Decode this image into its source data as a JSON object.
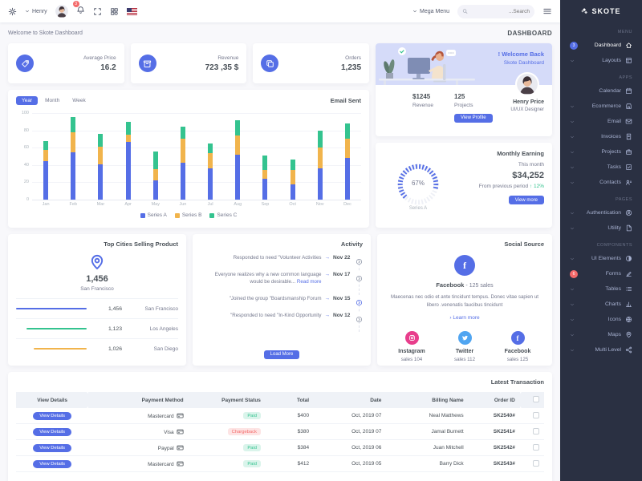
{
  "navbar": {
    "user_name": "Henry",
    "notification_count": "3",
    "mega_menu_label": "Mega Menu",
    "search_placeholder": "...Search"
  },
  "page": {
    "breadcrumb": "Welcome to Skote Dashboard",
    "title": "DASHBOARD"
  },
  "stats": [
    {
      "label": "Average Price",
      "value": "16.2",
      "icon": "tag-icon"
    },
    {
      "label": "Revenue",
      "value": "723 ,35 $",
      "icon": "archive-icon"
    },
    {
      "label": "Orders",
      "value": "1,235",
      "icon": "copy-icon"
    }
  ],
  "email_sent": {
    "title": "Email Sent",
    "tabs": [
      "Year",
      "Month",
      "Week"
    ],
    "active_tab": "Year"
  },
  "chart_data": [
    {
      "type": "bar",
      "stacked": true,
      "title": "Email Sent",
      "categories": [
        "Jan",
        "Feb",
        "Mar",
        "Apr",
        "May",
        "Jun",
        "Jul",
        "Aug",
        "Sep",
        "Oct",
        "Nov",
        "Dec"
      ],
      "series": [
        {
          "name": "Series A",
          "color": "#556ee6",
          "values": [
            44,
            55,
            41,
            67,
            22,
            43,
            36,
            52,
            24,
            18,
            36,
            48
          ]
        },
        {
          "name": "Series B",
          "color": "#f1b44c",
          "values": [
            13,
            23,
            20,
            8,
            13,
            27,
            18,
            22,
            10,
            16,
            24,
            22
          ]
        },
        {
          "name": "Series C",
          "color": "#34c38f",
          "values": [
            11,
            17,
            15,
            15,
            21,
            14,
            11,
            18,
            17,
            12,
            20,
            18
          ]
        }
      ],
      "ylim": [
        0,
        100
      ],
      "yticks": [
        0,
        20,
        40,
        60,
        80,
        100
      ],
      "grid": true,
      "legend_position": "bottom"
    },
    {
      "type": "radial",
      "title": "Monthly Earning",
      "label": "Series A",
      "value": 67,
      "max": 100,
      "color": "#556ee6"
    }
  ],
  "welcome_card": {
    "greeting": "! Welcome Back",
    "subtitle": "Skote Dashboard",
    "revenue_value": "$1245",
    "revenue_label": "Revenue",
    "projects_value": "125",
    "projects_label": "Projects",
    "button_label": "View Profile",
    "user_name": "Henry Price",
    "user_role": "UI/UX Designer"
  },
  "monthly_earning": {
    "title": "Monthly Earning",
    "period_label": "This month",
    "amount": "$34,252",
    "comparison_label": "From previous period",
    "delta": "12%",
    "delta_arrow": "↑",
    "button_label": "View more",
    "gauge_percent": "67%",
    "gauge_label": "Series A"
  },
  "top_cities": {
    "title": "Top Cities Selling Product",
    "highlight_value": "1,456",
    "highlight_city": "San Francisco",
    "rows": [
      {
        "value": "1,456",
        "city": "San Francisco",
        "color": "#556ee6",
        "pct": 100
      },
      {
        "value": "1,123",
        "city": "Los Angeles",
        "color": "#34c38f",
        "pct": 85
      },
      {
        "value": "1,026",
        "city": "San Diego",
        "color": "#f1b44c",
        "pct": 75
      }
    ]
  },
  "activity": {
    "title": "Activity",
    "items": [
      {
        "text": "Responded to need \"Volunteer Activities",
        "date": "Nov 22",
        "active": false
      },
      {
        "text": "Everyone realizes why a new common language would be desirable...",
        "link": "Read more",
        "date": "Nov 17",
        "active": false
      },
      {
        "text": "\"Joined the group \"Boardsmanship Forum",
        "date": "Nov 15",
        "active": true
      },
      {
        "text": "\"Responded to need \"In-Kind Opportunity",
        "date": "Nov 12",
        "active": false
      }
    ],
    "button_label": "Load More"
  },
  "social": {
    "title": "Social Source",
    "main_name": "Facebook",
    "main_sales": "- 125 sales",
    "description": "Maecenas nec odio et ante tincidunt tempus. Donec vitae sapien ut libero .venenatis faucibus tincidunt",
    "link_label": "Learn more",
    "items": [
      {
        "name": "Instagram",
        "sales": "sales 104",
        "color": "#e83e8c",
        "icon": "instagram-icon"
      },
      {
        "name": "Twitter",
        "sales": "sales 112",
        "color": "#50a5f1",
        "icon": "twitter-icon"
      },
      {
        "name": "Facebook",
        "sales": "sales 125",
        "color": "#556ee6",
        "icon": "facebook-icon"
      }
    ]
  },
  "transactions": {
    "title": "Latest Transaction",
    "headers": [
      "View Details",
      "Payment Method",
      "Payment Status",
      "Total",
      "Date",
      "Billing Name",
      "Order ID"
    ],
    "rows": [
      {
        "button": "View Details",
        "method": "Mastercard",
        "status": "Paid",
        "total": "$400",
        "date": "Oct, 2019 07",
        "name": "Neal Matthews",
        "order_id": "SK2540#"
      },
      {
        "button": "View Details",
        "method": "Visa",
        "status": "Chargeback",
        "total": "$380",
        "date": "Oct, 2019 07",
        "name": "Jamal Burnett",
        "order_id": "SK2541#"
      },
      {
        "button": "View Details",
        "method": "Paypal",
        "status": "Paid",
        "total": "$384",
        "date": "Oct, 2019 06",
        "name": "Juan Mitchell",
        "order_id": "SK2542#"
      },
      {
        "button": "View Details",
        "method": "Mastercard",
        "status": "Paid",
        "total": "$412",
        "date": "Oct, 2019 05",
        "name": "Barry Dick",
        "order_id": "SK2543#"
      }
    ]
  },
  "sidebar": {
    "brand": "SKOTE",
    "sections": [
      {
        "label": "MENU",
        "items": [
          {
            "label": "Dashboard",
            "icon": "home-icon",
            "badge": "3",
            "active": true
          },
          {
            "label": "Layouts",
            "icon": "layout-icon",
            "chevron": true
          }
        ]
      },
      {
        "label": "APPS",
        "items": [
          {
            "label": "Calendar",
            "icon": "calendar-icon"
          },
          {
            "label": "Ecommerce",
            "icon": "store-icon",
            "chevron": true
          },
          {
            "label": "Email",
            "icon": "envelope-icon",
            "chevron": true
          },
          {
            "label": "Invoices",
            "icon": "invoice-icon",
            "chevron": true
          },
          {
            "label": "Projects",
            "icon": "briefcase-icon",
            "chevron": true
          },
          {
            "label": "Tasks",
            "icon": "task-icon",
            "chevron": true
          },
          {
            "label": "Contacts",
            "icon": "contacts-icon",
            "chevron": true
          }
        ]
      },
      {
        "label": "PAGES",
        "items": [
          {
            "label": "Authentication",
            "icon": "user-circle-icon",
            "chevron": true
          },
          {
            "label": "Utility",
            "icon": "file-icon",
            "chevron": true
          }
        ]
      },
      {
        "label": "COMPONENTS",
        "items": [
          {
            "label": "UI Elements",
            "icon": "ui-tone-icon",
            "chevron": true
          },
          {
            "label": "Forms",
            "icon": "pencil-icon",
            "badge": "6",
            "badge_color": "red"
          },
          {
            "label": "Tables",
            "icon": "list-icon",
            "chevron": true
          },
          {
            "label": "Charts",
            "icon": "bar-chart-icon",
            "chevron": true
          },
          {
            "label": "Icons",
            "icon": "aperture-icon",
            "chevron": true
          },
          {
            "label": "Maps",
            "icon": "map-pin-icon",
            "chevron": true
          },
          {
            "label": "Multi Level",
            "icon": "share-icon",
            "chevron": true
          }
        ]
      }
    ]
  },
  "colors": {
    "primary": "#556ee6",
    "success": "#34c38f",
    "warning": "#f1b44c",
    "danger": "#f46a6a",
    "info": "#50a5f1",
    "pink": "#e83e8c",
    "sidebar_bg": "#2a3042"
  }
}
